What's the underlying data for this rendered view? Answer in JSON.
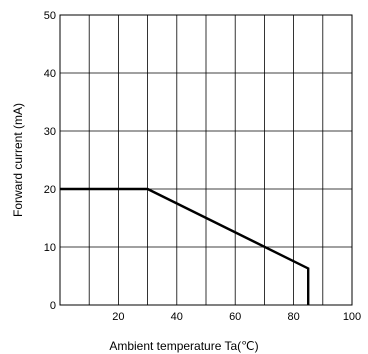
{
  "chart_data": {
    "type": "line",
    "title": "",
    "xlabel": "Ambient temperature Ta(℃)",
    "ylabel": "Forward current (mA)",
    "xlim": [
      0,
      100
    ],
    "ylim": [
      0,
      50
    ],
    "x_ticks": [
      20,
      40,
      60,
      80,
      100
    ],
    "y_ticks": [
      0,
      10,
      20,
      30,
      40,
      50
    ],
    "x_grid_step": 10,
    "y_grid_step": 10,
    "grid": true,
    "legend": "none",
    "series": [
      {
        "x": [
          0,
          30,
          85,
          85
        ],
        "y": [
          20,
          20,
          6.3,
          0
        ],
        "color": "#000000"
      }
    ]
  }
}
